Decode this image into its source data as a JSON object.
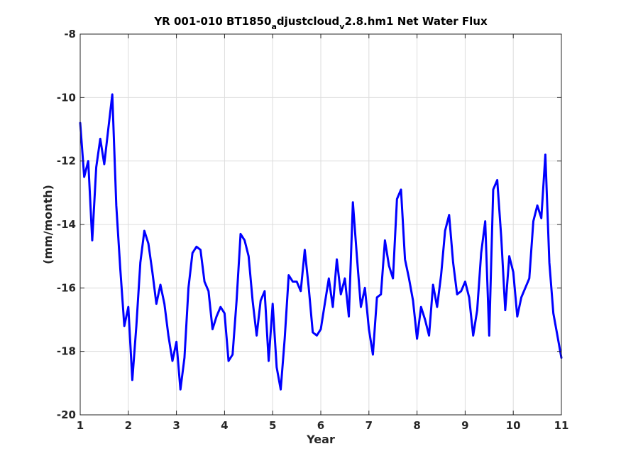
{
  "chart_data": {
    "type": "line",
    "title": {
      "prefix": "YR 001-010 BT1850",
      "sub1": "a",
      "mid": "djustcloud",
      "sub2": "v",
      "suffix": "2.8.hm1 Net Water Flux"
    },
    "xlabel": "Year",
    "ylabel": "(mm/month)",
    "xlim": [
      1,
      11
    ],
    "ylim": [
      -20,
      -8
    ],
    "xticks": [
      1,
      2,
      3,
      4,
      5,
      6,
      7,
      8,
      9,
      10,
      11
    ],
    "yticks": [
      -20,
      -18,
      -16,
      -14,
      -12,
      -10,
      -8
    ],
    "grid": true,
    "line_color": "#0000ff",
    "series": [
      {
        "x": [
          1.0,
          1.083,
          1.167,
          1.25,
          1.333,
          1.417,
          1.5,
          1.583,
          1.667,
          1.75,
          1.833,
          1.917,
          2.0,
          2.083,
          2.167,
          2.25,
          2.333,
          2.417,
          2.5,
          2.583,
          2.667,
          2.75,
          2.833,
          2.917,
          3.0,
          3.083,
          3.167,
          3.25,
          3.333,
          3.417,
          3.5,
          3.583,
          3.667,
          3.75,
          3.833,
          3.917,
          4.0,
          4.083,
          4.167,
          4.25,
          4.333,
          4.417,
          4.5,
          4.583,
          4.667,
          4.75,
          4.833,
          4.917,
          5.0,
          5.083,
          5.167,
          5.25,
          5.333,
          5.417,
          5.5,
          5.583,
          5.667,
          5.75,
          5.833,
          5.917,
          6.0,
          6.083,
          6.167,
          6.25,
          6.333,
          6.417,
          6.5,
          6.583,
          6.667,
          6.75,
          6.833,
          6.917,
          7.0,
          7.083,
          7.167,
          7.25,
          7.333,
          7.417,
          7.5,
          7.583,
          7.667,
          7.75,
          7.833,
          7.917,
          8.0,
          8.083,
          8.167,
          8.25,
          8.333,
          8.417,
          8.5,
          8.583,
          8.667,
          8.75,
          8.833,
          8.917,
          9.0,
          9.083,
          9.167,
          9.25,
          9.333,
          9.417,
          9.5,
          9.583,
          9.667,
          9.75,
          9.833,
          9.917,
          10.0,
          10.083,
          10.167,
          10.25,
          10.333,
          10.417,
          10.5,
          10.583,
          10.667,
          10.75,
          10.833,
          10.917,
          11.0
        ],
        "values": [
          -10.8,
          -12.5,
          -12.0,
          -14.5,
          -12.2,
          -11.3,
          -12.1,
          -11.0,
          -9.9,
          -13.4,
          -15.4,
          -17.2,
          -16.6,
          -18.9,
          -17.2,
          -15.2,
          -14.2,
          -14.6,
          -15.5,
          -16.5,
          -15.9,
          -16.5,
          -17.5,
          -18.3,
          -17.7,
          -19.2,
          -18.2,
          -16.0,
          -14.9,
          -14.7,
          -14.8,
          -15.8,
          -16.1,
          -17.3,
          -16.9,
          -16.6,
          -16.8,
          -18.3,
          -18.1,
          -16.4,
          -14.3,
          -14.5,
          -15.0,
          -16.4,
          -17.5,
          -16.4,
          -16.1,
          -18.3,
          -16.5,
          -18.5,
          -19.2,
          -17.6,
          -15.6,
          -15.8,
          -15.8,
          -16.1,
          -14.8,
          -16.0,
          -17.4,
          -17.5,
          -17.3,
          -16.5,
          -15.7,
          -16.6,
          -15.1,
          -16.2,
          -15.7,
          -16.9,
          -13.3,
          -15.0,
          -16.6,
          -16.0,
          -17.3,
          -18.1,
          -16.3,
          -16.2,
          -14.5,
          -15.3,
          -15.7,
          -13.2,
          -12.9,
          -15.1,
          -15.7,
          -16.4,
          -17.6,
          -16.6,
          -17.0,
          -17.5,
          -15.9,
          -16.6,
          -15.6,
          -14.2,
          -13.7,
          -15.2,
          -16.2,
          -16.1,
          -15.8,
          -16.3,
          -17.5,
          -16.7,
          -14.9,
          -13.9,
          -17.5,
          -12.9,
          -12.6,
          -14.4,
          -16.7,
          -15.0,
          -15.5,
          -16.9,
          -16.3,
          -16.0,
          -15.7,
          -13.9,
          -13.4,
          -13.8,
          -11.8,
          -15.2,
          -16.8,
          -17.5,
          -18.2
        ]
      }
    ]
  }
}
